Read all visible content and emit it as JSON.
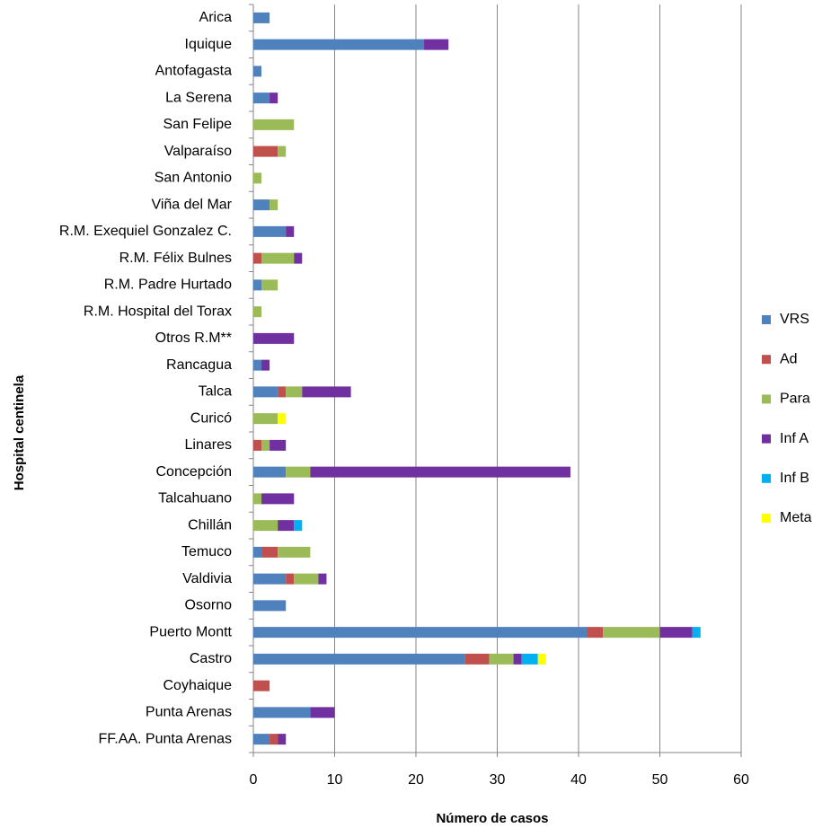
{
  "chart_data": {
    "type": "bar",
    "orientation": "horizontal",
    "stacked": true,
    "x_label": "Número de casos",
    "y_label": "Hospital  centinela",
    "categories": [
      "Arica",
      "Iquique",
      "Antofagasta",
      "La Serena",
      "San Felipe",
      "Valparaíso",
      "San Antonio",
      "Viña del Mar",
      "R.M. Exequiel Gonzalez C.",
      "R.M. Félix Bulnes",
      "R.M. Padre Hurtado",
      "R.M. Hospital  del Torax",
      "Otros R.M**",
      "Rancagua",
      "Talca",
      "Curicó",
      "Linares",
      "Concepción",
      "Talcahuano",
      "Chillán",
      "Temuco",
      "Valdivia",
      "Osorno",
      "Puerto Montt",
      "Castro",
      "Coyhaique",
      "Punta Arenas",
      "FF.AA. Punta Arenas"
    ],
    "series": [
      {
        "name": "VRS",
        "color": "#4f81bd",
        "values": [
          2,
          21,
          1,
          2,
          0,
          0,
          0,
          2,
          4,
          0,
          1,
          0,
          0,
          1,
          3,
          0,
          0,
          4,
          0,
          0,
          1,
          4,
          4,
          41,
          26,
          0,
          7,
          2
        ]
      },
      {
        "name": "Ad",
        "color": "#c0504d",
        "values": [
          0,
          0,
          0,
          0,
          0,
          3,
          0,
          0,
          0,
          1,
          0,
          0,
          0,
          0,
          1,
          0,
          1,
          0,
          0,
          0,
          2,
          1,
          0,
          2,
          3,
          2,
          0,
          1
        ]
      },
      {
        "name": "Para",
        "color": "#9bbb59",
        "values": [
          0,
          0,
          0,
          0,
          5,
          1,
          1,
          1,
          0,
          4,
          2,
          1,
          0,
          0,
          2,
          3,
          1,
          3,
          1,
          3,
          4,
          3,
          0,
          7,
          3,
          0,
          0,
          0
        ]
      },
      {
        "name": "Inf A",
        "color": "#7030a0",
        "values": [
          0,
          3,
          0,
          1,
          0,
          0,
          0,
          0,
          1,
          1,
          0,
          0,
          5,
          1,
          6,
          0,
          2,
          32,
          4,
          2,
          0,
          1,
          0,
          4,
          1,
          0,
          3,
          1
        ]
      },
      {
        "name": "Inf B",
        "color": "#00b0f0",
        "values": [
          0,
          0,
          0,
          0,
          0,
          0,
          0,
          0,
          0,
          0,
          0,
          0,
          0,
          0,
          0,
          0,
          0,
          0,
          0,
          1,
          0,
          0,
          0,
          1,
          2,
          0,
          0,
          0
        ]
      },
      {
        "name": "Meta",
        "color": "#ffff00",
        "values": [
          0,
          0,
          0,
          0,
          0,
          0,
          0,
          0,
          0,
          0,
          0,
          0,
          0,
          0,
          0,
          1,
          0,
          0,
          0,
          0,
          0,
          0,
          0,
          0,
          1,
          0,
          0,
          0
        ]
      }
    ],
    "xlim": [
      0,
      60
    ],
    "xticks": [
      0,
      10,
      20,
      30,
      40,
      50,
      60
    ],
    "grid": true,
    "legend": "right"
  }
}
